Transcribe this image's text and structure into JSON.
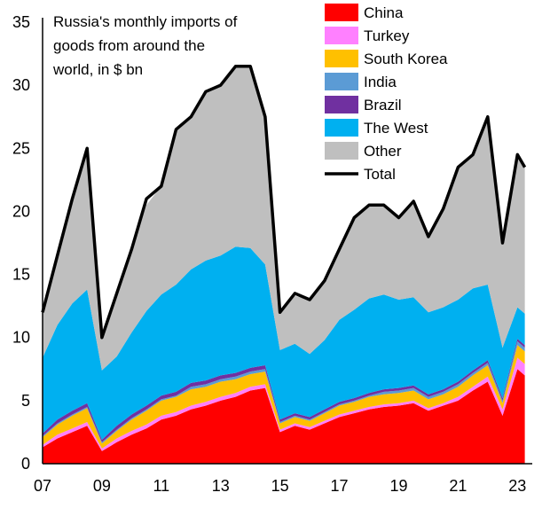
{
  "chart_data": {
    "type": "area",
    "title_lines": [
      "Russia's monthly imports of",
      "goods from around the",
      "world, in $ bn"
    ],
    "xlabel": "",
    "ylabel": "",
    "ylim": [
      0,
      35
    ],
    "yticks": [
      0,
      5,
      10,
      15,
      20,
      25,
      30,
      35
    ],
    "xlim": [
      2007,
      2023.5
    ],
    "xtick_values": [
      2007,
      2009,
      2011,
      2013,
      2015,
      2017,
      2019,
      2021,
      2023
    ],
    "xtick_labels": [
      "07",
      "09",
      "11",
      "13",
      "15",
      "17",
      "19",
      "21",
      "23"
    ],
    "grid": false,
    "legend_position": "top-right",
    "stacking": "stacked",
    "x": [
      2007.0,
      2007.5,
      2008.0,
      2008.5,
      2009.0,
      2009.5,
      2010.0,
      2010.5,
      2011.0,
      2011.5,
      2012.0,
      2012.5,
      2013.0,
      2013.5,
      2014.0,
      2014.5,
      2015.0,
      2015.5,
      2016.0,
      2016.5,
      2017.0,
      2017.5,
      2018.0,
      2018.5,
      2019.0,
      2019.5,
      2020.0,
      2020.5,
      2021.0,
      2021.5,
      2022.0,
      2022.5,
      2023.0,
      2023.25
    ],
    "series": [
      {
        "name": "China",
        "color": "#ff0000",
        "values": [
          1.3,
          2.0,
          2.5,
          3.0,
          1.0,
          1.7,
          2.3,
          2.8,
          3.5,
          3.8,
          4.3,
          4.6,
          5.0,
          5.3,
          5.8,
          6.0,
          2.5,
          3.0,
          2.7,
          3.2,
          3.7,
          4.0,
          4.3,
          4.5,
          4.6,
          4.8,
          4.2,
          4.6,
          5.0,
          5.8,
          6.5,
          3.8,
          7.5,
          7.0
        ]
      },
      {
        "name": "Turkey",
        "color": "#ff80ff",
        "values": [
          0.2,
          0.3,
          0.3,
          0.3,
          0.2,
          0.3,
          0.3,
          0.3,
          0.3,
          0.3,
          0.3,
          0.3,
          0.3,
          0.3,
          0.3,
          0.3,
          0.2,
          0.2,
          0.2,
          0.2,
          0.2,
          0.2,
          0.2,
          0.2,
          0.2,
          0.2,
          0.2,
          0.2,
          0.3,
          0.3,
          0.4,
          0.5,
          0.9,
          0.9
        ]
      },
      {
        "name": "South Korea",
        "color": "#ffc000",
        "values": [
          0.6,
          0.8,
          1.0,
          1.1,
          0.4,
          0.6,
          0.9,
          1.1,
          1.2,
          1.2,
          1.3,
          1.2,
          1.2,
          1.1,
          1.0,
          1.0,
          0.5,
          0.5,
          0.5,
          0.6,
          0.7,
          0.7,
          0.8,
          0.8,
          0.8,
          0.8,
          0.7,
          0.7,
          0.8,
          0.9,
          0.9,
          0.5,
          1.0,
          1.0
        ]
      },
      {
        "name": "India",
        "color": "#5b9bd5",
        "values": [
          0.1,
          0.1,
          0.1,
          0.1,
          0.1,
          0.1,
          0.1,
          0.1,
          0.1,
          0.1,
          0.2,
          0.2,
          0.2,
          0.2,
          0.2,
          0.2,
          0.1,
          0.1,
          0.1,
          0.1,
          0.1,
          0.1,
          0.1,
          0.2,
          0.2,
          0.2,
          0.2,
          0.2,
          0.2,
          0.2,
          0.2,
          0.2,
          0.3,
          0.3
        ]
      },
      {
        "name": "Brazil",
        "color": "#7030a0",
        "values": [
          0.2,
          0.3,
          0.3,
          0.3,
          0.2,
          0.3,
          0.3,
          0.3,
          0.3,
          0.3,
          0.3,
          0.3,
          0.3,
          0.3,
          0.3,
          0.3,
          0.2,
          0.2,
          0.2,
          0.2,
          0.2,
          0.2,
          0.2,
          0.2,
          0.2,
          0.2,
          0.2,
          0.2,
          0.2,
          0.2,
          0.2,
          0.2,
          0.2,
          0.2
        ]
      },
      {
        "name": "The West",
        "color": "#00b0f0",
        "values": [
          6.0,
          7.5,
          8.5,
          9.0,
          5.5,
          5.5,
          6.5,
          7.5,
          8.0,
          8.5,
          9.0,
          9.5,
          9.5,
          10.0,
          9.5,
          8.0,
          5.5,
          5.5,
          5.0,
          5.5,
          6.5,
          7.0,
          7.5,
          7.5,
          7.0,
          7.0,
          6.5,
          6.5,
          6.5,
          6.5,
          6.0,
          4.0,
          2.5,
          2.5
        ]
      },
      {
        "name": "Other",
        "color": "#bfbfbf",
        "values": [
          3.6,
          5.5,
          8.3,
          11.2,
          2.6,
          5.0,
          6.6,
          8.4,
          8.6,
          12.3,
          12.1,
          13.4,
          13.5,
          14.3,
          14.4,
          11.7,
          3.0,
          3.8,
          4.3,
          4.7,
          5.6,
          7.3,
          7.4,
          7.1,
          6.5,
          7.4,
          6.0,
          7.8,
          10.5,
          10.6,
          13.3,
          8.3,
          12.1,
          11.6
        ]
      },
      {
        "name": "Total",
        "color": "#000000",
        "values": [
          12.0,
          16.5,
          21.0,
          25.0,
          10.0,
          13.5,
          17.0,
          21.0,
          22.0,
          26.5,
          27.5,
          29.5,
          30.0,
          31.5,
          31.5,
          27.5,
          12.0,
          13.5,
          13.0,
          14.5,
          17.0,
          19.5,
          20.5,
          20.5,
          19.5,
          20.8,
          18.0,
          20.2,
          23.5,
          24.5,
          27.5,
          17.5,
          24.5,
          23.5
        ]
      }
    ]
  }
}
